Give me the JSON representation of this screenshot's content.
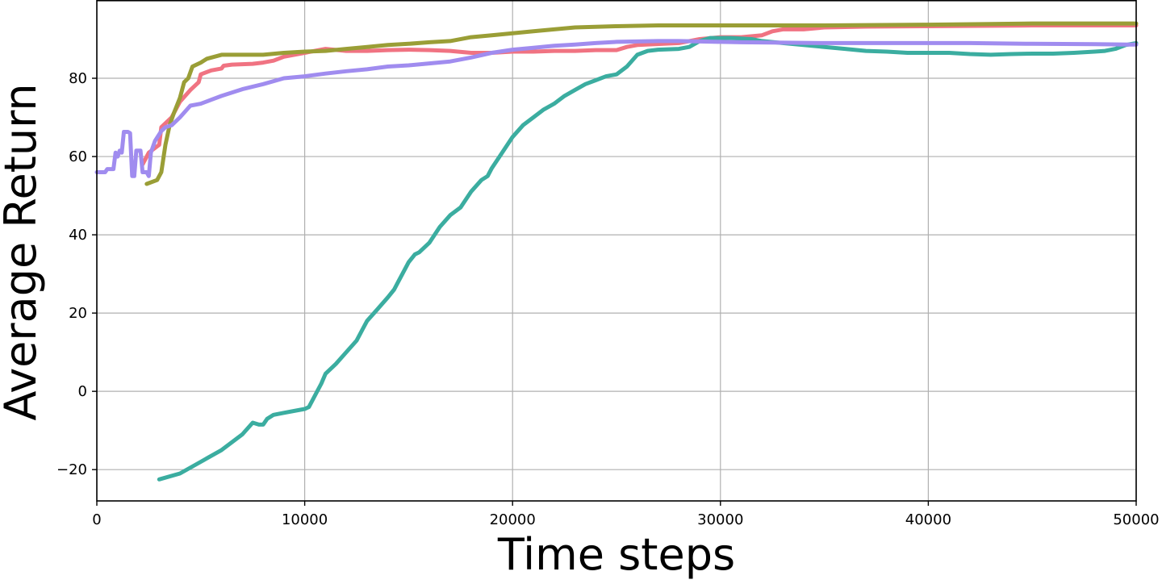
{
  "chart_data": {
    "type": "line",
    "title": "",
    "xlabel": "Time steps",
    "ylabel": "Average Return",
    "xlim": [
      0,
      50000
    ],
    "ylim": [
      -28,
      100
    ],
    "xticks": [
      0,
      10000,
      20000,
      30000,
      40000,
      50000
    ],
    "xtick_labels": [
      "0",
      "10000",
      "20000",
      "30000",
      "40000",
      "50000"
    ],
    "yticks": [
      -20,
      0,
      20,
      40,
      60,
      80
    ],
    "ytick_labels": [
      "−20",
      "0",
      "20",
      "40",
      "60",
      "80"
    ],
    "grid": true,
    "legend": "none",
    "series": [
      {
        "color": "#f07382",
        "points": [
          [
            2200,
            58
          ],
          [
            2500,
            61
          ],
          [
            3000,
            63
          ],
          [
            3100,
            67.5
          ],
          [
            3600,
            70
          ],
          [
            4000,
            74
          ],
          [
            4500,
            77
          ],
          [
            4900,
            79
          ],
          [
            5000,
            81
          ],
          [
            5500,
            82
          ],
          [
            6000,
            82.5
          ],
          [
            6100,
            83.2
          ],
          [
            6500,
            83.5
          ],
          [
            7500,
            83.7
          ],
          [
            8000,
            84
          ],
          [
            8500,
            84.5
          ],
          [
            9000,
            85.5
          ],
          [
            10000,
            86.5
          ],
          [
            11000,
            87.5
          ],
          [
            12000,
            87
          ],
          [
            13000,
            87
          ],
          [
            14000,
            87.2
          ],
          [
            15000,
            87.3
          ],
          [
            16000,
            87.2
          ],
          [
            17000,
            87
          ],
          [
            18000,
            86.5
          ],
          [
            19000,
            86.5
          ],
          [
            20000,
            86.8
          ],
          [
            21000,
            86.8
          ],
          [
            22000,
            87
          ],
          [
            23000,
            87
          ],
          [
            24000,
            87.2
          ],
          [
            25000,
            87.2
          ],
          [
            25500,
            88
          ],
          [
            26000,
            88.5
          ],
          [
            28000,
            89
          ],
          [
            29000,
            90
          ],
          [
            30000,
            90.5
          ],
          [
            31000,
            90.5
          ],
          [
            32000,
            91
          ],
          [
            32500,
            92
          ],
          [
            33000,
            92.5
          ],
          [
            34000,
            92.5
          ],
          [
            35000,
            93
          ],
          [
            37000,
            93.2
          ],
          [
            40000,
            93.3
          ],
          [
            45000,
            93.5
          ],
          [
            47000,
            93.5
          ],
          [
            50000,
            93.5
          ]
        ]
      },
      {
        "color": "#9a9e36",
        "points": [
          [
            2400,
            53
          ],
          [
            2900,
            54
          ],
          [
            3100,
            56
          ],
          [
            3300,
            63
          ],
          [
            3500,
            68
          ],
          [
            3700,
            71
          ],
          [
            4000,
            75
          ],
          [
            4200,
            79
          ],
          [
            4400,
            80
          ],
          [
            4600,
            83
          ],
          [
            5000,
            84
          ],
          [
            5300,
            85
          ],
          [
            6000,
            86
          ],
          [
            7000,
            86
          ],
          [
            8000,
            86
          ],
          [
            9000,
            86.5
          ],
          [
            10000,
            86.8
          ],
          [
            11000,
            87
          ],
          [
            12000,
            87.5
          ],
          [
            13000,
            88
          ],
          [
            14000,
            88.5
          ],
          [
            15000,
            88.8
          ],
          [
            16000,
            89.2
          ],
          [
            17000,
            89.5
          ],
          [
            18000,
            90.5
          ],
          [
            19000,
            91
          ],
          [
            20000,
            91.5
          ],
          [
            21000,
            92
          ],
          [
            22000,
            92.5
          ],
          [
            23000,
            93
          ],
          [
            25000,
            93.3
          ],
          [
            27000,
            93.5
          ],
          [
            30000,
            93.5
          ],
          [
            33000,
            93.5
          ],
          [
            35000,
            93.5
          ],
          [
            40000,
            93.7
          ],
          [
            45000,
            94
          ],
          [
            50000,
            94
          ]
        ]
      },
      {
        "color": "#3bada0",
        "points": [
          [
            3000,
            -22.5
          ],
          [
            4000,
            -21
          ],
          [
            5000,
            -18
          ],
          [
            6000,
            -15
          ],
          [
            7000,
            -11
          ],
          [
            7500,
            -8
          ],
          [
            7800,
            -8.5
          ],
          [
            8000,
            -8.5
          ],
          [
            8200,
            -7
          ],
          [
            8500,
            -6
          ],
          [
            9000,
            -5.5
          ],
          [
            10000,
            -4.5
          ],
          [
            10200,
            -4
          ],
          [
            10500,
            -1
          ],
          [
            10800,
            2
          ],
          [
            11000,
            4.5
          ],
          [
            11500,
            7
          ],
          [
            12000,
            10
          ],
          [
            12500,
            13
          ],
          [
            12800,
            16
          ],
          [
            13000,
            18
          ],
          [
            13500,
            21
          ],
          [
            14000,
            24
          ],
          [
            14300,
            26
          ],
          [
            14500,
            28
          ],
          [
            14700,
            30
          ],
          [
            15000,
            33
          ],
          [
            15300,
            35
          ],
          [
            15500,
            35.5
          ],
          [
            16000,
            38
          ],
          [
            16500,
            42
          ],
          [
            17000,
            45
          ],
          [
            17500,
            47
          ],
          [
            18000,
            51
          ],
          [
            18500,
            54
          ],
          [
            18800,
            55
          ],
          [
            19000,
            57
          ],
          [
            19500,
            61
          ],
          [
            20000,
            65
          ],
          [
            20500,
            68
          ],
          [
            21000,
            70
          ],
          [
            21500,
            72
          ],
          [
            22000,
            73.5
          ],
          [
            22500,
            75.5
          ],
          [
            23000,
            77
          ],
          [
            23500,
            78.5
          ],
          [
            24000,
            79.5
          ],
          [
            24500,
            80.5
          ],
          [
            25000,
            81
          ],
          [
            25500,
            83
          ],
          [
            26000,
            86
          ],
          [
            26500,
            87
          ],
          [
            27000,
            87.3
          ],
          [
            28000,
            87.5
          ],
          [
            28500,
            88
          ],
          [
            29000,
            89.5
          ],
          [
            29500,
            90.3
          ],
          [
            30500,
            90.3
          ],
          [
            31500,
            90
          ],
          [
            32000,
            89.5
          ],
          [
            33000,
            89
          ],
          [
            34000,
            88.5
          ],
          [
            35000,
            88
          ],
          [
            36000,
            87.5
          ],
          [
            37000,
            87
          ],
          [
            38000,
            86.8
          ],
          [
            39000,
            86.5
          ],
          [
            40000,
            86.5
          ],
          [
            41000,
            86.5
          ],
          [
            42000,
            86.2
          ],
          [
            43000,
            86
          ],
          [
            44000,
            86.2
          ],
          [
            45000,
            86.3
          ],
          [
            46000,
            86.3
          ],
          [
            47000,
            86.5
          ],
          [
            48000,
            86.8
          ],
          [
            48500,
            87
          ],
          [
            49000,
            87.5
          ],
          [
            49500,
            88.5
          ],
          [
            50000,
            89
          ]
        ]
      },
      {
        "color": "#a08cef",
        "points": [
          [
            0,
            56
          ],
          [
            400,
            56
          ],
          [
            500,
            56.8
          ],
          [
            800,
            56.8
          ],
          [
            900,
            61
          ],
          [
            1000,
            60
          ],
          [
            1100,
            61.5
          ],
          [
            1200,
            61
          ],
          [
            1300,
            66.3
          ],
          [
            1500,
            66.3
          ],
          [
            1600,
            66
          ],
          [
            1700,
            55
          ],
          [
            1800,
            55
          ],
          [
            1900,
            61.5
          ],
          [
            2100,
            61.5
          ],
          [
            2200,
            56
          ],
          [
            2400,
            56
          ],
          [
            2500,
            55
          ],
          [
            2600,
            61
          ],
          [
            2800,
            64
          ],
          [
            3100,
            66.5
          ],
          [
            3300,
            67.5
          ],
          [
            3600,
            68
          ],
          [
            4000,
            70
          ],
          [
            4500,
            73
          ],
          [
            5000,
            73.5
          ],
          [
            5500,
            74.5
          ],
          [
            6000,
            75.5
          ],
          [
            7000,
            77.2
          ],
          [
            8000,
            78.5
          ],
          [
            9000,
            80
          ],
          [
            10000,
            80.5
          ],
          [
            11000,
            81.2
          ],
          [
            12000,
            81.8
          ],
          [
            13000,
            82.3
          ],
          [
            14000,
            83
          ],
          [
            15000,
            83.3
          ],
          [
            16000,
            83.8
          ],
          [
            17000,
            84.3
          ],
          [
            18000,
            85.3
          ],
          [
            19000,
            86.5
          ],
          [
            20000,
            87.3
          ],
          [
            21000,
            87.8
          ],
          [
            22000,
            88.3
          ],
          [
            23000,
            88.6
          ],
          [
            24000,
            89
          ],
          [
            25000,
            89.3
          ],
          [
            26000,
            89.4
          ],
          [
            27000,
            89.5
          ],
          [
            28000,
            89.5
          ],
          [
            29000,
            89.4
          ],
          [
            30000,
            89.3
          ],
          [
            31000,
            89.2
          ],
          [
            33000,
            89.1
          ],
          [
            35000,
            89
          ],
          [
            37000,
            89
          ],
          [
            40000,
            89
          ],
          [
            42000,
            89
          ],
          [
            45000,
            88.8
          ],
          [
            48000,
            88.7
          ],
          [
            50000,
            88.6
          ]
        ]
      }
    ]
  }
}
